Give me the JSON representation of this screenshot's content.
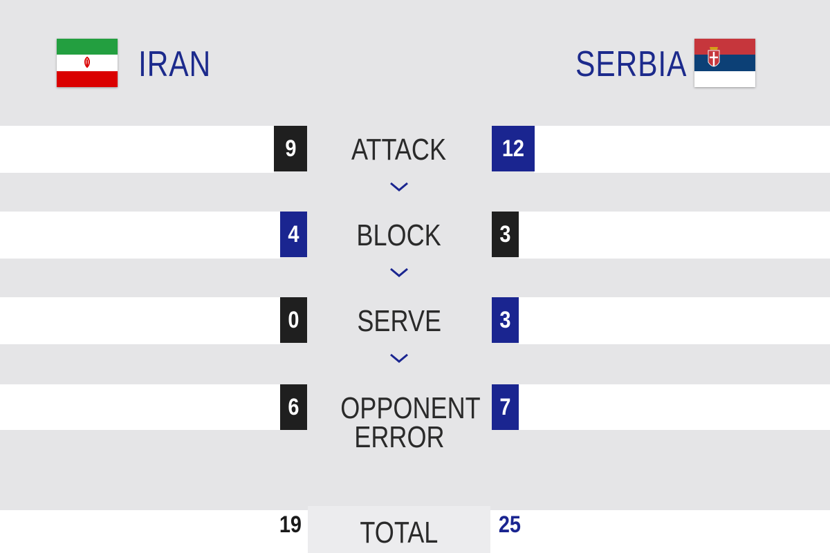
{
  "teams": {
    "left": {
      "name": "IRAN",
      "flag_colors": [
        "#239f40",
        "#ffffff",
        "#da0000"
      ],
      "emblem_color": "#da0000"
    },
    "right": {
      "name": "SERBIA",
      "flag_colors": [
        "#c6363c",
        "#0c4076",
        "#ffffff"
      ]
    }
  },
  "colors": {
    "navy": "#1a2590",
    "dark": "#1f1f1f",
    "background": "#e5e5e7",
    "text_blue": "#1c2a8c"
  },
  "stats": [
    {
      "label": "ATTACK",
      "left_value": "9",
      "right_value": "12",
      "left_style": "dark",
      "right_style": "blue"
    },
    {
      "label": "BLOCK",
      "left_value": "4",
      "right_value": "3",
      "left_style": "blue",
      "right_style": "dark"
    },
    {
      "label": "SERVE",
      "left_value": "0",
      "right_value": "3",
      "left_style": "dark",
      "right_style": "blue"
    },
    {
      "label_line1": "OPPONENT",
      "label_line2": "ERROR",
      "left_value": "6",
      "right_value": "7",
      "left_style": "dark",
      "right_style": "blue"
    }
  ],
  "total": {
    "label": "TOTAL",
    "left_value": "19",
    "right_value": "25"
  },
  "icons": {
    "chevron": "chevron-down-icon",
    "emblem": "emblem-icon",
    "coat_of_arms": "coat-of-arms-icon"
  }
}
